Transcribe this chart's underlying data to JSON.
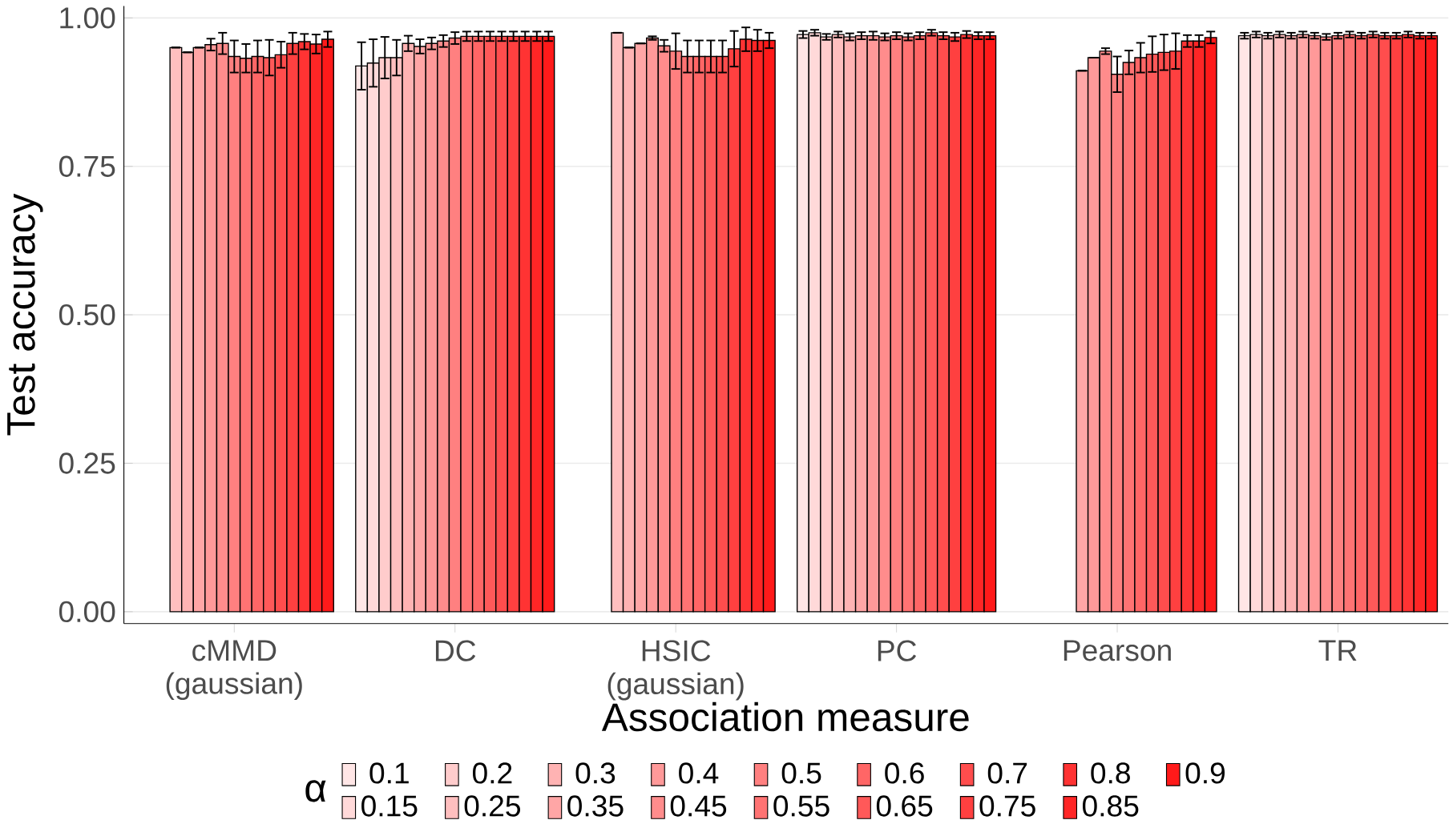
{
  "chart_data": {
    "type": "bar",
    "xlabel": "Association measure",
    "ylabel": "Test accuracy",
    "legend_title": "α",
    "categories": [
      "cMMD (gaussian)",
      "DC",
      "HSIC (gaussian)",
      "PC",
      "Pearson",
      "TR"
    ],
    "ylim": [
      -0.02,
      1.02
    ],
    "yticks": [
      {
        "value": 0,
        "label": "0.00"
      },
      {
        "value": 0.25,
        "label": "0.25"
      },
      {
        "value": 0.5,
        "label": "0.50"
      },
      {
        "value": 0.75,
        "label": "0.75"
      },
      {
        "value": 1,
        "label": "1.00"
      }
    ],
    "grid": "y",
    "legend": "bottom",
    "series": [
      {
        "name": "0.1",
        "color": "#ffe6e6",
        "values": [
          null,
          0.919,
          null,
          0.972,
          null,
          0.97
        ],
        "errors": [
          null,
          0.04,
          null,
          0.006,
          null,
          0.005
        ]
      },
      {
        "name": "0.15",
        "color": "#ffd9d9",
        "values": [
          null,
          0.924,
          null,
          0.975,
          null,
          0.972
        ],
        "errors": [
          null,
          0.04,
          null,
          0.005,
          null,
          0.005
        ]
      },
      {
        "name": "0.2",
        "color": "#ffcccc",
        "values": [
          null,
          0.933,
          null,
          0.968,
          null,
          0.97
        ],
        "errors": [
          null,
          0.035,
          null,
          0.005,
          null,
          0.005
        ]
      },
      {
        "name": "0.25",
        "color": "#ffbfbf",
        "values": [
          0.95,
          0.933,
          0.975,
          0.972,
          null,
          0.972
        ],
        "errors": [
          null,
          0.03,
          null,
          0.005,
          null,
          0.005
        ]
      },
      {
        "name": "0.3",
        "color": "#ffb3b3",
        "values": [
          0.942,
          0.957,
          0.95,
          0.968,
          null,
          0.97
        ],
        "errors": [
          null,
          0.013,
          null,
          0.006,
          null,
          0.005
        ]
      },
      {
        "name": "0.35",
        "color": "#ffa6a6",
        "values": [
          0.95,
          0.952,
          0.957,
          0.97,
          0.911,
          0.972
        ],
        "errors": [
          null,
          0.012,
          null,
          0.006,
          null,
          0.005
        ]
      },
      {
        "name": "0.4",
        "color": "#ff9999",
        "values": [
          0.955,
          0.957,
          0.966,
          0.97,
          0.933,
          0.97
        ],
        "errors": [
          0.01,
          0.01,
          0.003,
          0.007,
          null,
          0.005
        ]
      },
      {
        "name": "0.45",
        "color": "#ff8c8c",
        "values": [
          0.957,
          0.961,
          0.953,
          0.968,
          0.944,
          0.968
        ],
        "errors": [
          0.018,
          0.01,
          0.01,
          0.006,
          0.005,
          0.005
        ]
      },
      {
        "name": "0.5",
        "color": "#ff8080",
        "values": [
          0.935,
          0.966,
          0.944,
          0.97,
          0.905,
          0.97
        ],
        "errors": [
          0.027,
          0.01,
          0.03,
          0.006,
          0.03,
          0.005
        ]
      },
      {
        "name": "0.55",
        "color": "#ff7373",
        "values": [
          0.932,
          0.969,
          0.935,
          0.968,
          0.925,
          0.972
        ],
        "errors": [
          0.024,
          0.008,
          0.027,
          0.006,
          0.02,
          0.005
        ]
      },
      {
        "name": "0.6",
        "color": "#ff6666",
        "values": [
          0.935,
          0.969,
          0.935,
          0.97,
          0.933,
          0.97
        ],
        "errors": [
          0.027,
          0.008,
          0.027,
          0.006,
          0.025,
          0.005
        ]
      },
      {
        "name": "0.65",
        "color": "#ff5959",
        "values": [
          0.933,
          0.969,
          0.935,
          0.975,
          0.939,
          0.972
        ],
        "errors": [
          0.03,
          0.008,
          0.027,
          0.005,
          0.03,
          0.005
        ]
      },
      {
        "name": "0.7",
        "color": "#ff4d4d",
        "values": [
          0.938,
          0.969,
          0.935,
          0.97,
          0.942,
          0.97
        ],
        "errors": [
          0.022,
          0.008,
          0.027,
          0.006,
          0.03,
          0.005
        ]
      },
      {
        "name": "0.75",
        "color": "#ff4040",
        "values": [
          0.957,
          0.969,
          0.948,
          0.968,
          0.944,
          0.97
        ],
        "errors": [
          0.018,
          0.008,
          0.03,
          0.007,
          0.03,
          0.005
        ]
      },
      {
        "name": "0.8",
        "color": "#ff3333",
        "values": [
          0.96,
          0.969,
          0.964,
          0.972,
          0.961,
          0.972
        ],
        "errors": [
          0.013,
          0.008,
          0.02,
          0.006,
          0.01,
          0.005
        ]
      },
      {
        "name": "0.85",
        "color": "#ff2626",
        "values": [
          0.956,
          0.969,
          0.962,
          0.97,
          0.961,
          0.97
        ],
        "errors": [
          0.016,
          0.008,
          0.018,
          0.006,
          0.01,
          0.005
        ]
      },
      {
        "name": "0.9",
        "color": "#ff1a1a",
        "values": [
          0.964,
          0.969,
          0.962,
          0.97,
          0.967,
          0.97
        ],
        "errors": [
          0.013,
          0.008,
          0.013,
          0.006,
          0.01,
          0.005
        ]
      }
    ]
  }
}
